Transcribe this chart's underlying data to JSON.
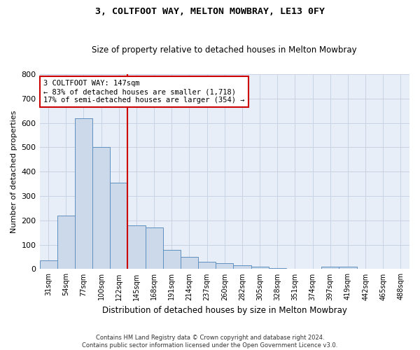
{
  "title1": "3, COLTFOOT WAY, MELTON MOWBRAY, LE13 0FY",
  "title2": "Size of property relative to detached houses in Melton Mowbray",
  "xlabel": "Distribution of detached houses by size in Melton Mowbray",
  "ylabel": "Number of detached properties",
  "bar_values": [
    35,
    220,
    620,
    500,
    355,
    180,
    170,
    80,
    50,
    30,
    25,
    15,
    10,
    5,
    0,
    0,
    10,
    10,
    0,
    0,
    0
  ],
  "bin_labels": [
    "31sqm",
    "54sqm",
    "77sqm",
    "100sqm",
    "122sqm",
    "145sqm",
    "168sqm",
    "191sqm",
    "214sqm",
    "237sqm",
    "260sqm",
    "282sqm",
    "305sqm",
    "328sqm",
    "351sqm",
    "374sqm",
    "397sqm",
    "419sqm",
    "442sqm",
    "465sqm",
    "488sqm"
  ],
  "bar_color": "#ccd9ea",
  "bar_edge_color": "#6090c0",
  "vline_color": "#cc0000",
  "annotation_text": "3 COLTFOOT WAY: 147sqm\n← 83% of detached houses are smaller (1,718)\n17% of semi-detached houses are larger (354) →",
  "annotation_box_color": "#ffffff",
  "annotation_box_edge": "#cc0000",
  "grid_color": "#c8d4e4",
  "background_color": "#e8eef8",
  "ylim": [
    0,
    800
  ],
  "yticks": [
    0,
    100,
    200,
    300,
    400,
    500,
    600,
    700,
    800
  ],
  "footer1": "Contains HM Land Registry data © Crown copyright and database right 2024.",
  "footer2": "Contains public sector information licensed under the Open Government Licence v3.0."
}
